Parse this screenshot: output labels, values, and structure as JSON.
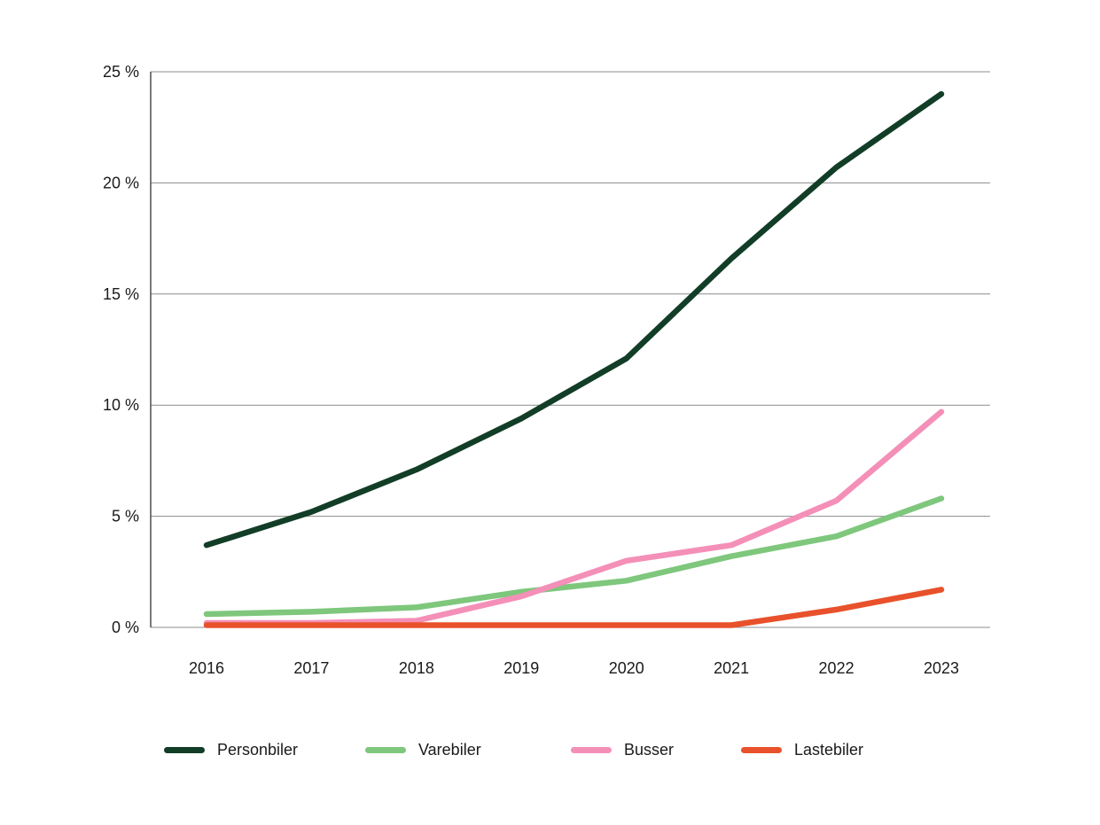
{
  "chart_data": {
    "type": "line",
    "title": "",
    "xlabel": "",
    "ylabel": "",
    "categories": [
      "2016",
      "2017",
      "2018",
      "2019",
      "2020",
      "2021",
      "2022",
      "2023"
    ],
    "series": [
      {
        "name": "Personbiler",
        "color": "#123d27",
        "values": [
          3.7,
          5.2,
          7.1,
          9.4,
          12.1,
          16.6,
          20.7,
          24.0
        ]
      },
      {
        "name": "Varebiler",
        "color": "#7ec77c",
        "values": [
          0.6,
          0.7,
          0.9,
          1.6,
          2.1,
          3.2,
          4.1,
          5.8
        ]
      },
      {
        "name": "Busser",
        "color": "#f48fb8",
        "values": [
          0.2,
          0.2,
          0.3,
          1.4,
          3.0,
          3.7,
          5.7,
          9.7
        ]
      },
      {
        "name": "Lastebiler",
        "color": "#e8512b",
        "values": [
          0.1,
          0.1,
          0.1,
          0.1,
          0.1,
          0.1,
          0.8,
          1.7
        ]
      }
    ],
    "ylim": [
      0,
      25
    ],
    "yticks": [
      {
        "value": 0,
        "label": "0 %"
      },
      {
        "value": 5,
        "label": "5 %"
      },
      {
        "value": 10,
        "label": "10 %"
      },
      {
        "value": 15,
        "label": "15 %"
      },
      {
        "value": 20,
        "label": "20 %"
      },
      {
        "value": 25,
        "label": "25 %"
      }
    ],
    "grid": true,
    "legend_position": "bottom"
  },
  "colors": {
    "background": "#ffffff",
    "grid": "#8c8c8c",
    "axis_left": "#4d4d4d",
    "axis_bottom": "#8c8c8c",
    "text": "#1a1a1a"
  }
}
